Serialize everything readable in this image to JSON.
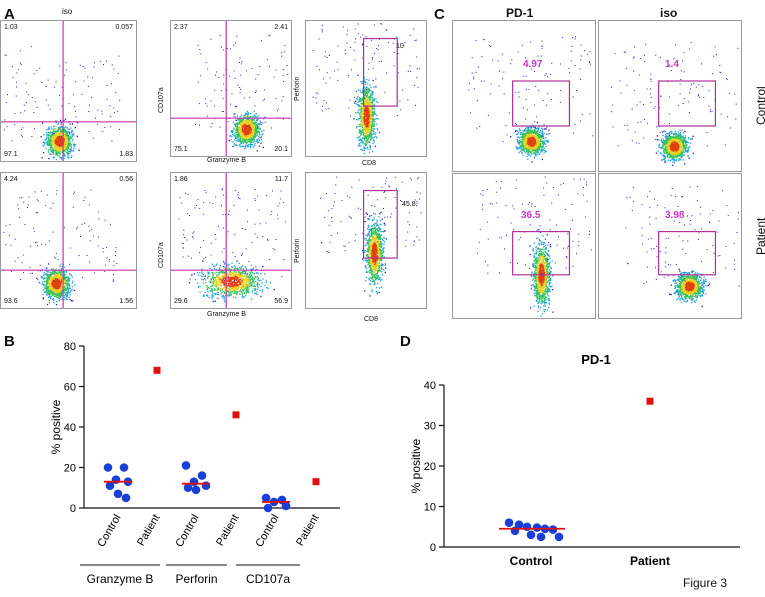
{
  "panels": {
    "A": {
      "letter": "A",
      "title": "iso",
      "row1": {
        "plot1": {
          "q_ul": "1.03",
          "q_ur": "0.057",
          "q_ll": "97.1",
          "q_lr": "1.83"
        },
        "plot2": {
          "q_ul": "2.37",
          "q_ur": "2.41",
          "q_ll": "75.1",
          "q_lr": "20.1",
          "ylabel": "CD107a",
          "xlabel": "Granzyme B"
        },
        "plot3": {
          "gate": "10",
          "ylabel": "Perforin",
          "xlabel": "CD8"
        }
      },
      "row2": {
        "plot1": {
          "q_ul": "4.24",
          "q_ur": "0.56",
          "q_ll": "93.6",
          "q_lr": "1.56"
        },
        "plot2": {
          "q_ul": "1.86",
          "q_ur": "11.7",
          "q_ll": "29.6",
          "q_lr": "56.9",
          "ylabel": "CD107a",
          "xlabel": "Granzyme B"
        },
        "plot3": {
          "gate": "45.8",
          "ylabel": "Perforin",
          "xlabel": "CD8"
        }
      }
    },
    "C": {
      "letter": "C",
      "col1": "PD-1",
      "col2": "iso",
      "row1": "Control",
      "row2": "Patient",
      "gates": {
        "control_pd1": "4.97",
        "control_iso": "1.4",
        "patient_pd1": "36.5",
        "patient_iso": "3.98"
      }
    },
    "B": {
      "letter": "B"
    },
    "D": {
      "letter": "D"
    }
  },
  "figure_label": "Figure 3",
  "colors": {
    "quad_line": "#cc33aa",
    "gate": "#b0309a",
    "gate_text": "#cc33cc",
    "dot": "#1a3fd6",
    "patient": "#e01010",
    "median": "#e01010"
  },
  "chart_data": [
    {
      "id": "B",
      "type": "scatter",
      "title": "",
      "ylabel": "% positive",
      "ylim": [
        0,
        80
      ],
      "yticks": [
        "0",
        "20",
        "40",
        "60",
        "80"
      ],
      "groups": [
        {
          "name": "Granzyme B",
          "control_label": "Control",
          "patient_label": "Patient",
          "control": [
            20,
            20,
            14,
            13,
            11,
            7,
            5
          ],
          "median": 13,
          "patient": 68
        },
        {
          "name": "Perforin",
          "control_label": "Control",
          "patient_label": "Patient",
          "control": [
            21,
            16,
            13,
            11,
            10,
            9
          ],
          "median": 12,
          "patient": 46
        },
        {
          "name": "CD107a",
          "control_label": "Control",
          "patient_label": "Patient",
          "control": [
            5,
            4,
            3,
            1,
            0
          ],
          "median": 3,
          "patient": 13
        }
      ]
    },
    {
      "id": "D",
      "type": "scatter",
      "title": "PD-1",
      "ylabel": "% positive",
      "ylim": [
        0,
        40
      ],
      "yticks": [
        "0",
        "10",
        "20",
        "30",
        "40"
      ],
      "categories": [
        "Control",
        "Patient"
      ],
      "control": [
        6,
        5.5,
        5,
        4.8,
        4.5,
        4.3,
        4,
        3,
        2.5,
        2.5
      ],
      "median": 4.5,
      "patient": 36
    }
  ]
}
